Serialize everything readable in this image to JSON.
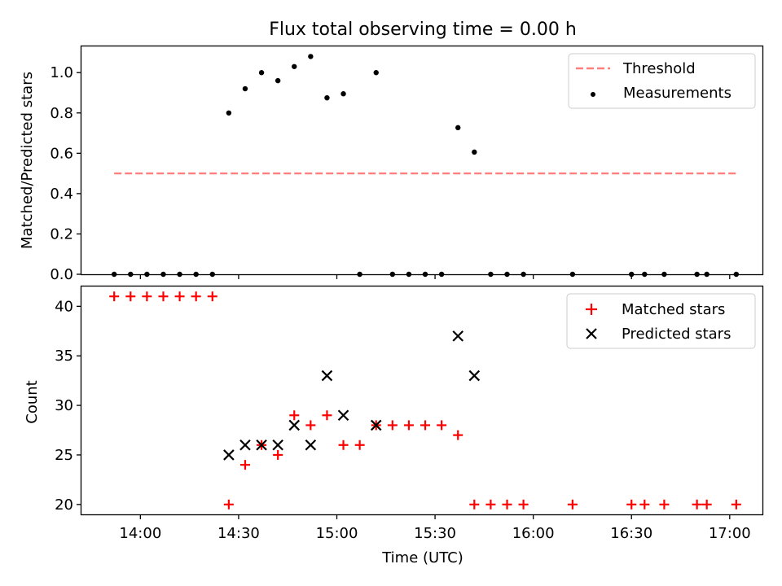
{
  "chart_data": [
    {
      "type": "scatter",
      "title": "Flux total observing time = 0.00 h",
      "xlabel": "",
      "ylabel": "Matched/Predicted stars",
      "ylim": [
        0,
        1.13
      ],
      "xlim": [
        "13:42",
        "17:10"
      ],
      "yticks": [
        0.0,
        0.2,
        0.4,
        0.6,
        0.8,
        1.0
      ],
      "ytick_labels": [
        "0.0",
        "0.2",
        "0.4",
        "0.6",
        "0.8",
        "1.0"
      ],
      "legend_position": "top-right",
      "series": [
        {
          "name": "Threshold",
          "kind": "line",
          "style": "dashed",
          "color": "#ff7f7f",
          "x": [
            "13:52",
            "17:02"
          ],
          "y": [
            0.5,
            0.5
          ]
        },
        {
          "name": "Measurements",
          "kind": "scatter",
          "marker": "dot",
          "color": "#000000",
          "x": [
            "13:52",
            "13:57",
            "14:02",
            "14:07",
            "14:12",
            "14:17",
            "14:22",
            "14:27",
            "14:32",
            "14:37",
            "14:42",
            "14:47",
            "14:52",
            "14:57",
            "15:02",
            "15:07",
            "15:12",
            "15:17",
            "15:22",
            "15:27",
            "15:32",
            "15:37",
            "15:42",
            "15:47",
            "15:52",
            "15:57",
            "16:12",
            "16:30",
            "16:34",
            "16:40",
            "16:50",
            "16:53",
            "17:02"
          ],
          "y": [
            0,
            0,
            0,
            0,
            0,
            0,
            0,
            0.8,
            0.92,
            1.0,
            0.96,
            1.03,
            1.08,
            0.875,
            0.895,
            0,
            1.0,
            0,
            0,
            0,
            0,
            0.727,
            0.606,
            0,
            0,
            0,
            0,
            0,
            0,
            0,
            0,
            0,
            0
          ]
        }
      ]
    },
    {
      "type": "scatter",
      "title": "",
      "xlabel": "Time (UTC)",
      "ylabel": "Count",
      "ylim": [
        19,
        42
      ],
      "xlim": [
        "13:42",
        "17:10"
      ],
      "yticks": [
        20,
        25,
        30,
        35,
        40
      ],
      "ytick_labels": [
        "20",
        "25",
        "30",
        "35",
        "40"
      ],
      "xticks": [
        "14:00",
        "14:30",
        "15:00",
        "15:30",
        "16:00",
        "16:30",
        "17:00"
      ],
      "xtick_labels": [
        "14:00",
        "14:30",
        "15:00",
        "15:30",
        "16:00",
        "16:30",
        "17:00"
      ],
      "legend_position": "top-right",
      "series": [
        {
          "name": "Matched stars",
          "kind": "scatter",
          "marker": "plus",
          "color": "#ff0000",
          "x": [
            "13:52",
            "13:57",
            "14:02",
            "14:07",
            "14:12",
            "14:17",
            "14:22",
            "14:27",
            "14:32",
            "14:37",
            "14:42",
            "14:47",
            "14:52",
            "14:57",
            "15:02",
            "15:07",
            "15:12",
            "15:17",
            "15:22",
            "15:27",
            "15:32",
            "15:37",
            "15:42",
            "15:47",
            "15:52",
            "15:57",
            "16:12",
            "16:30",
            "16:34",
            "16:40",
            "16:50",
            "16:53",
            "17:02"
          ],
          "y": [
            41,
            41,
            41,
            41,
            41,
            41,
            41,
            20,
            24,
            26,
            25,
            29,
            28,
            29,
            26,
            26,
            28,
            28,
            28,
            28,
            28,
            27,
            20,
            20,
            20,
            20,
            20,
            20,
            20,
            20,
            20,
            20,
            20
          ]
        },
        {
          "name": "Predicted stars",
          "kind": "scatter",
          "marker": "x",
          "color": "#000000",
          "x": [
            "14:27",
            "14:32",
            "14:37",
            "14:42",
            "14:47",
            "14:52",
            "14:57",
            "15:02",
            "15:12",
            "15:37",
            "15:42"
          ],
          "y": [
            25,
            26,
            26,
            26,
            28,
            26,
            33,
            29,
            28,
            37,
            33
          ]
        }
      ]
    }
  ]
}
